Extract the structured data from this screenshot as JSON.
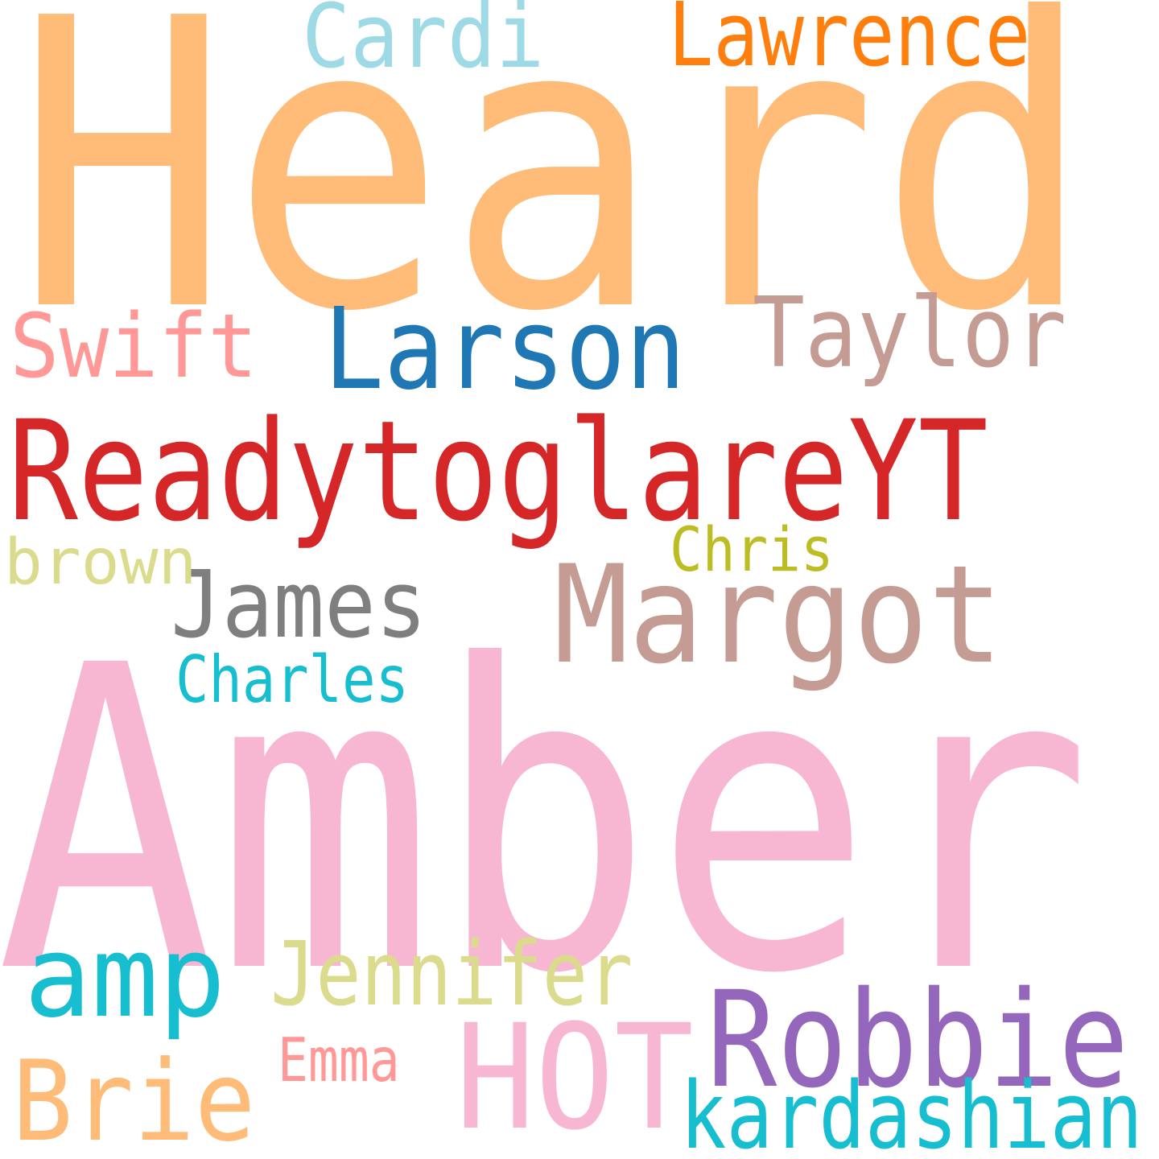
{
  "words": [
    {
      "text": "Heard",
      "color": "#ffbb78"
    },
    {
      "text": "Amber",
      "color": "#f7b6d2"
    },
    {
      "text": "ReadytoglareYT",
      "color": "#d62728"
    },
    {
      "text": "Larson",
      "color": "#1f77b4"
    },
    {
      "text": "Taylor",
      "color": "#c49c94"
    },
    {
      "text": "Swift",
      "color": "#ff9896"
    },
    {
      "text": "Cardi",
      "color": "#9edae5"
    },
    {
      "text": "Lawrence",
      "color": "#ff7f0e"
    },
    {
      "text": "Margot",
      "color": "#c49c94"
    },
    {
      "text": "James",
      "color": "#7f7f7f"
    },
    {
      "text": "Charles",
      "color": "#17becf"
    },
    {
      "text": "brown",
      "color": "#dbdb8d"
    },
    {
      "text": "Chris",
      "color": "#bcbd22"
    },
    {
      "text": "amp",
      "color": "#17becf"
    },
    {
      "text": "Jennifer",
      "color": "#dbdb8d"
    },
    {
      "text": "Robbie",
      "color": "#9467bd"
    },
    {
      "text": "HOT",
      "color": "#f7b6d2"
    },
    {
      "text": "Brie",
      "color": "#ffbb78"
    },
    {
      "text": "Emma",
      "color": "#ff9896"
    },
    {
      "text": "kardashian",
      "color": "#17becf"
    }
  ]
}
